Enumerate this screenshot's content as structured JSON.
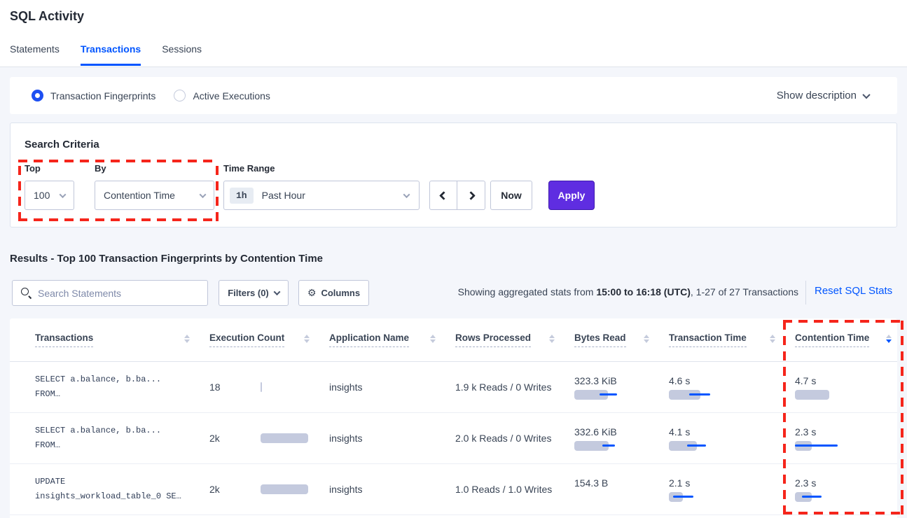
{
  "page": {
    "title": "SQL Activity"
  },
  "tabs": [
    {
      "label": "Statements"
    },
    {
      "label": "Transactions"
    },
    {
      "label": "Sessions"
    }
  ],
  "view_toggle": {
    "fingerprints_label": "Transaction Fingerprints",
    "active_executions_label": "Active Executions",
    "show_description_label": "Show description"
  },
  "search_criteria": {
    "title": "Search Criteria",
    "top_label": "Top",
    "top_value": "100",
    "by_label": "By",
    "by_value": "Contention Time",
    "time_range_label": "Time Range",
    "time_range_badge": "1h",
    "time_range_value": "Past Hour",
    "now_label": "Now",
    "apply_label": "Apply"
  },
  "results": {
    "heading": "Results - Top 100 Transaction Fingerprints by Contention Time",
    "search_placeholder": "Search Statements",
    "filters_label": "Filters (0)",
    "columns_label": "Columns",
    "stats_prefix": "Showing aggregated stats from ",
    "stats_period": "15:00 to 16:18 (UTC)",
    "stats_suffix": ", 1-27 of 27 Transactions",
    "reset_label": "Reset SQL Stats"
  },
  "table": {
    "columns": [
      {
        "label": "Transactions",
        "sort": "none"
      },
      {
        "label": "Execution Count",
        "sort": "none"
      },
      {
        "label": "Application Name",
        "sort": "none"
      },
      {
        "label": "Rows Processed",
        "sort": "none"
      },
      {
        "label": "Bytes Read",
        "sort": "none"
      },
      {
        "label": "Transaction Time",
        "sort": "none"
      },
      {
        "label": "Contention Time",
        "sort": "desc"
      }
    ],
    "rows": [
      {
        "transaction_line1": "SELECT a.balance, b.ba...",
        "transaction_line2": "FROM…",
        "execution_count": "18",
        "application_name": "insights",
        "rows_processed": "1.9 k Reads / 0 Writes",
        "bytes_read": "323.3 KiB",
        "transaction_time": "4.6 s",
        "contention_time": "4.7 s",
        "bars": {
          "execution": {
            "bar": 2
          },
          "bytes": {
            "bar": 48,
            "line": [
              36,
              61
            ]
          },
          "transaction": {
            "bar": 45,
            "line": [
              29,
              59
            ]
          },
          "contention": {
            "bar": 49
          }
        }
      },
      {
        "transaction_line1": "SELECT a.balance, b.ba...",
        "transaction_line2": "FROM…",
        "execution_count": "2k",
        "application_name": "insights",
        "rows_processed": "2.0 k Reads / 0 Writes",
        "bytes_read": "332.6 KiB",
        "transaction_time": "4.1 s",
        "contention_time": "2.3 s",
        "bars": {
          "execution": {
            "bar": 68
          },
          "bytes": {
            "bar": 49,
            "line": [
              40,
              58
            ]
          },
          "transaction": {
            "bar": 40,
            "line": [
              26,
              53
            ]
          },
          "contention": {
            "bar": 24,
            "line": [
              0,
              61
            ]
          }
        }
      },
      {
        "transaction_line1": "UPDATE",
        "transaction_line2": "insights_workload_table_0 SE…",
        "execution_count": "2k",
        "application_name": "insights",
        "rows_processed": "1.0 Reads / 1.0 Writes",
        "bytes_read": "154.3 B",
        "transaction_time": "2.1 s",
        "contention_time": "2.3 s",
        "bars": {
          "execution": {
            "bar": 68
          },
          "bytes": {
            "bar": 0
          },
          "transaction": {
            "bar": 20,
            "line": [
              6,
              35
            ]
          },
          "contention": {
            "bar": 24,
            "line": [
              10,
              38
            ]
          }
        }
      }
    ]
  },
  "colors": {
    "accent_blue": "#0055ff",
    "apply_purple": "#5f2de1",
    "bar_grey": "#c4cade",
    "bar_line_blue": "#0055ff",
    "annotation_red": "#f5251b"
  }
}
